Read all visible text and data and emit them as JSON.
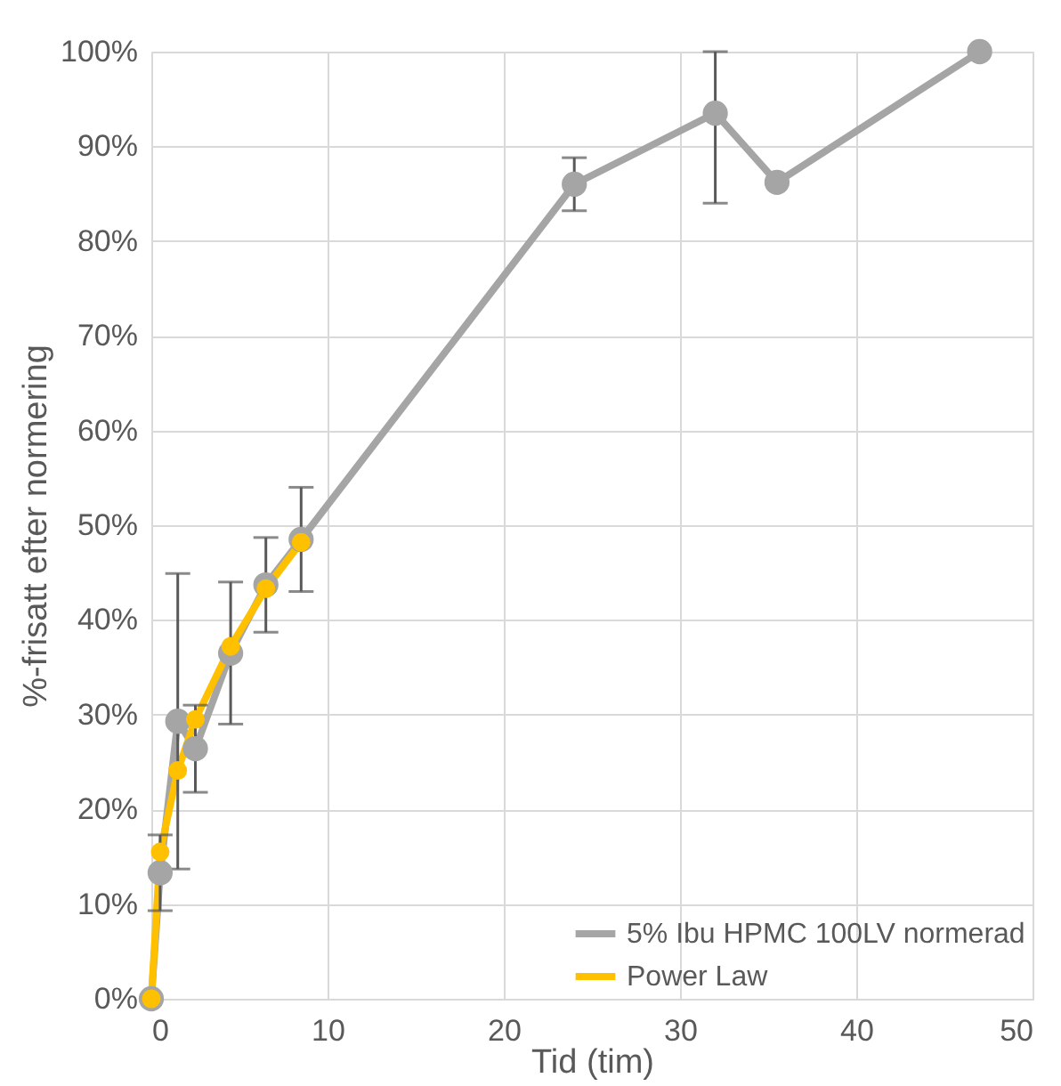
{
  "chart_data": {
    "type": "line",
    "xlabel": "Tid (tim)",
    "ylabel": "%-frisatt efter normering",
    "xlim": [
      0,
      50
    ],
    "xticks": [
      0,
      10,
      20,
      30,
      40,
      50
    ],
    "ylim": [
      0,
      100
    ],
    "yticks": [
      {
        "value": 0,
        "label": "0%"
      },
      {
        "value": 10,
        "label": "10%"
      },
      {
        "value": 20,
        "label": "20%"
      },
      {
        "value": 30,
        "label": "30%"
      },
      {
        "value": 40,
        "label": "40%"
      },
      {
        "value": 50,
        "label": "50%"
      },
      {
        "value": 60,
        "label": "60%"
      },
      {
        "value": 70,
        "label": "70%"
      },
      {
        "value": 80,
        "label": "80%"
      },
      {
        "value": 90,
        "label": "90%"
      },
      {
        "value": 100,
        "label": "100%"
      }
    ],
    "grid": true,
    "legend": "bottom right",
    "marker": "circle",
    "line_style": "solid",
    "series": [
      {
        "name": "5% Ibu HPMC 100LV normerad",
        "color": "#a5a5a5",
        "x": [
          0,
          0.5,
          1.5,
          2.5,
          4.5,
          6.5,
          8.5,
          24,
          32,
          35.5,
          47
        ],
        "values": [
          0,
          13.3,
          29.3,
          26.4,
          36.5,
          43.7,
          48.5,
          86,
          93.5,
          86.2,
          100
        ],
        "errors": [
          null,
          4,
          15.6,
          4.6,
          7.5,
          5,
          5.5,
          2.8,
          [
            84,
            100
          ],
          null,
          null
        ]
      },
      {
        "name": "Power Law",
        "color": "#ffc000",
        "x": [
          0,
          0.5,
          1.5,
          2.5,
          4.5,
          6.5,
          8.5
        ],
        "values": [
          0,
          15.5,
          24.1,
          29.5,
          37.2,
          43.3,
          48.2
        ]
      }
    ]
  }
}
